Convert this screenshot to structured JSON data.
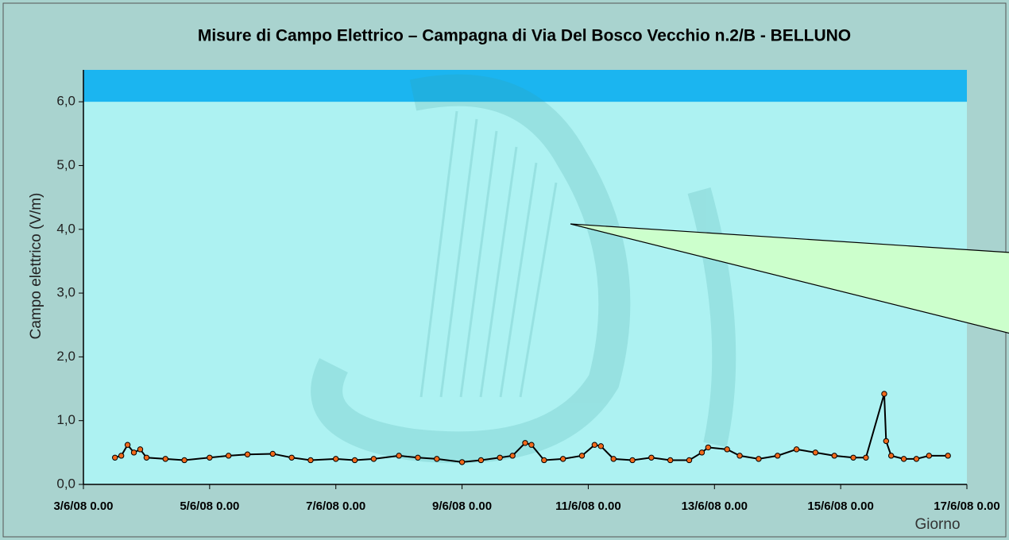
{
  "chart_data": {
    "type": "scatter",
    "title": "Misure di Campo Elettrico – Campagna di Via Del Bosco Vecchio n.2/B - BELLUNO",
    "y_label": "Campo elettrico (V/m)",
    "x_label": "Giorno",
    "x": [
      3.5,
      3.6,
      3.7,
      3.8,
      3.9,
      4.0,
      4.3,
      4.6,
      5.0,
      5.3,
      5.6,
      6.0,
      6.3,
      6.6,
      7.0,
      7.3,
      7.6,
      8.0,
      8.3,
      8.6,
      9.0,
      9.3,
      9.6,
      9.8,
      10.0,
      10.1,
      10.3,
      10.6,
      10.9,
      11.1,
      11.2,
      11.4,
      11.7,
      12.0,
      12.3,
      12.6,
      12.8,
      12.9,
      13.2,
      13.4,
      13.7,
      14.0,
      14.3,
      14.6,
      14.9,
      15.2,
      15.4,
      15.69,
      15.72,
      15.8,
      16.0,
      16.2,
      16.4,
      16.7
    ],
    "values": [
      0.42,
      0.45,
      0.62,
      0.5,
      0.55,
      0.42,
      0.4,
      0.38,
      0.42,
      0.45,
      0.47,
      0.48,
      0.42,
      0.38,
      0.4,
      0.38,
      0.4,
      0.45,
      0.42,
      0.4,
      0.35,
      0.38,
      0.42,
      0.45,
      0.65,
      0.62,
      0.38,
      0.4,
      0.45,
      0.62,
      0.6,
      0.4,
      0.38,
      0.42,
      0.38,
      0.38,
      0.5,
      0.58,
      0.55,
      0.45,
      0.4,
      0.45,
      0.55,
      0.5,
      0.45,
      0.42,
      0.42,
      1.42,
      0.68,
      0.45,
      0.4,
      0.4,
      0.45,
      0.45
    ],
    "color": "#f26a1b",
    "line_color": "#000000",
    "xlim": [
      3,
      17
    ],
    "xticks": [
      {
        "value": 3,
        "label": "3/6/08 0.00"
      },
      {
        "value": 5,
        "label": "5/6/08 0.00"
      },
      {
        "value": 7,
        "label": "7/6/08 0.00"
      },
      {
        "value": 9,
        "label": "9/6/08 0.00"
      },
      {
        "value": 11,
        "label": "11/6/08 0.00"
      },
      {
        "value": 13,
        "label": "13/6/08 0.00"
      },
      {
        "value": 15,
        "label": "15/6/08 0.00"
      },
      {
        "value": 17,
        "label": "17/6/08 0.00"
      }
    ],
    "ylim": [
      0,
      6.5
    ],
    "yticks": [
      {
        "value": 0,
        "label": "0,0"
      },
      {
        "value": 1,
        "label": "1,0"
      },
      {
        "value": 2,
        "label": "2,0"
      },
      {
        "value": 3,
        "label": "3,0"
      },
      {
        "value": 4,
        "label": "4,0"
      },
      {
        "value": 5,
        "label": "5,0"
      },
      {
        "value": 6,
        "label": "6,0"
      }
    ],
    "limit_band": [
      6,
      6.5
    ],
    "limit_band_color": "#1bb5f0",
    "plot_color": "#adf2f2"
  }
}
